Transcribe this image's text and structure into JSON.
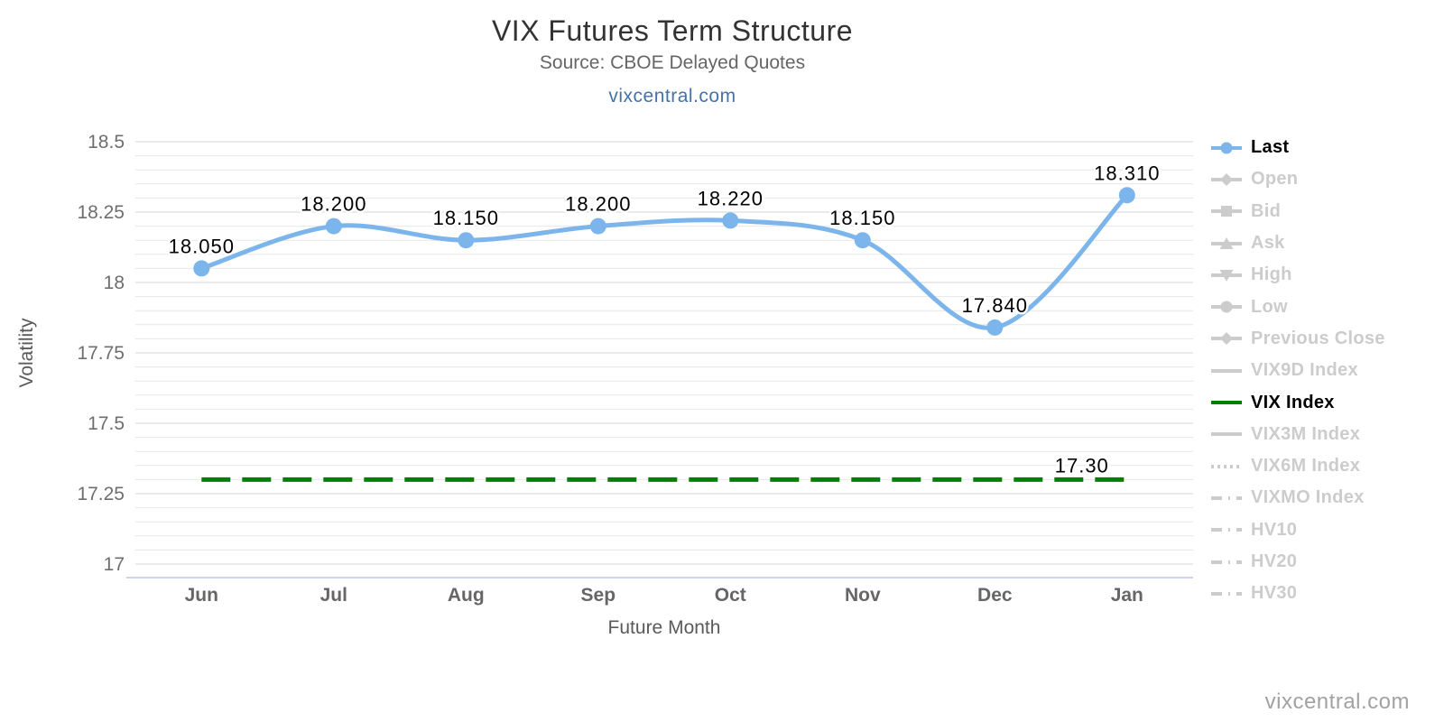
{
  "header": {
    "title": "VIX Futures Term Structure",
    "subtitle": "Source: CBOE Delayed Quotes",
    "link": "vixcentral.com"
  },
  "watermark": "vixcentral.com",
  "chart_data": {
    "type": "line",
    "title": "VIX Futures Term Structure",
    "subtitle": "Source: CBOE Delayed Quotes",
    "categories": [
      "Jun",
      "Jul",
      "Aug",
      "Sep",
      "Oct",
      "Nov",
      "Dec",
      "Jan"
    ],
    "series": [
      {
        "name": "Last",
        "type": "spline",
        "color": "#7cb5ec",
        "values": [
          18.05,
          18.2,
          18.15,
          18.2,
          18.22,
          18.15,
          17.84,
          18.31
        ],
        "point_labels": [
          "18.050",
          "18.200",
          "18.150",
          "18.200",
          "18.220",
          "18.150",
          "17.840",
          "18.310"
        ]
      },
      {
        "name": "VIX Index",
        "type": "horizontal-dashed-line",
        "color": "#008000",
        "value": 17.3,
        "label": "17.30"
      }
    ],
    "xlabel": "Future Month",
    "ylabel": "Volatility",
    "ylim": [
      16.95,
      18.5
    ],
    "yticks": [
      "17",
      "17.25",
      "17.5",
      "17.75",
      "18",
      "18.25",
      "18.5"
    ],
    "minor_tick_interval": 0.05,
    "grid": true,
    "legend": {
      "position": "right",
      "items": [
        {
          "label": "Last",
          "glyph": "line-circle",
          "color": "#7cb5ec",
          "active": true
        },
        {
          "label": "Open",
          "glyph": "line-diamond",
          "color": "#cccccc",
          "active": false
        },
        {
          "label": "Bid",
          "glyph": "line-square",
          "color": "#cccccc",
          "active": false
        },
        {
          "label": "Ask",
          "glyph": "line-triangle-up",
          "color": "#cccccc",
          "active": false
        },
        {
          "label": "High",
          "glyph": "line-triangle-down",
          "color": "#cccccc",
          "active": false
        },
        {
          "label": "Low",
          "glyph": "line-circle",
          "color": "#cccccc",
          "active": false
        },
        {
          "label": "Previous Close",
          "glyph": "line-diamond",
          "color": "#cccccc",
          "active": false
        },
        {
          "label": "VIX9D Index",
          "glyph": "line",
          "color": "#cccccc",
          "active": false
        },
        {
          "label": "VIX Index",
          "glyph": "line",
          "color": "#008000",
          "active": true
        },
        {
          "label": "VIX3M Index",
          "glyph": "line",
          "color": "#cccccc",
          "active": false
        },
        {
          "label": "VIX6M Index",
          "glyph": "line-dotted",
          "color": "#cccccc",
          "active": false
        },
        {
          "label": "VIXMO Index",
          "glyph": "line-dashdot",
          "color": "#cccccc",
          "active": false
        },
        {
          "label": "HV10",
          "glyph": "line-dashdot",
          "color": "#cccccc",
          "active": false
        },
        {
          "label": "HV20",
          "glyph": "line-dashdot",
          "color": "#cccccc",
          "active": false
        },
        {
          "label": "HV30",
          "glyph": "line-dashdot",
          "color": "#cccccc",
          "active": false
        }
      ]
    }
  },
  "colors": {
    "accent_blue": "#7cb5ec",
    "vix_green": "#008000",
    "link_blue": "#4572a7",
    "axis_line": "#ccd6eb",
    "grid_minor": "#e7e7e7",
    "grid_major": "#d5d5d5",
    "tick_text": "#6e6e6e",
    "axis_title_text": "#5a5a5a",
    "legend_inactive": "#cccccc",
    "legend_active_text": "#000000"
  }
}
